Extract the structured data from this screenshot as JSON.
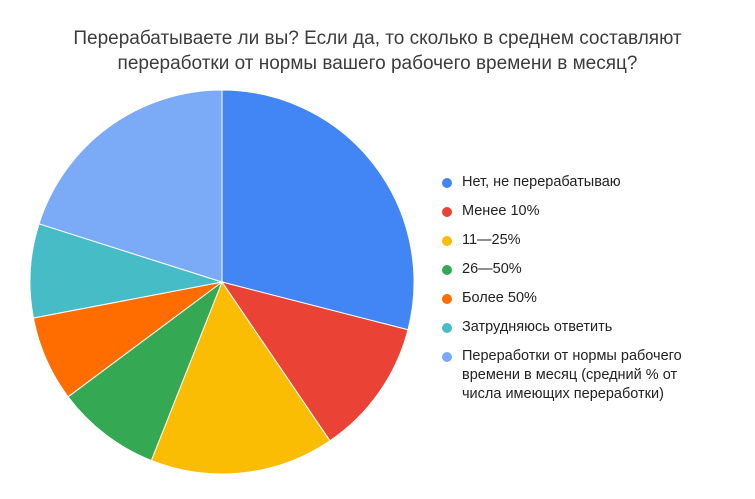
{
  "chart_data": {
    "type": "pie",
    "title_lines": [
      "Перерабатываете ли вы? Если да, то сколько в среднем составляют",
      "переработки от нормы вашего рабочего времени в месяц?"
    ],
    "slices": [
      {
        "label": "Нет, не перерабатываю",
        "value": 29.0,
        "color": "#4285f4"
      },
      {
        "label": "Менее 10%",
        "value": 11.5,
        "color": "#ea4335"
      },
      {
        "label": "11—25%",
        "value": 15.5,
        "color": "#fbbc04"
      },
      {
        "label": "26—50%",
        "value": 8.8,
        "color": "#34a853"
      },
      {
        "label": "Более 50%",
        "value": 7.2,
        "color": "#ff6d01"
      },
      {
        "label": "Затрудняюсь ответить",
        "value": 7.9,
        "color": "#46bdc6"
      },
      {
        "label": "Переработки от нормы рабочего\nвремени в месяц (средний % от\nчисла имеющих переработки)",
        "value": 20.1,
        "color": "#7baaf7"
      }
    ],
    "start_angle_deg": 0,
    "legend_position": "right"
  }
}
